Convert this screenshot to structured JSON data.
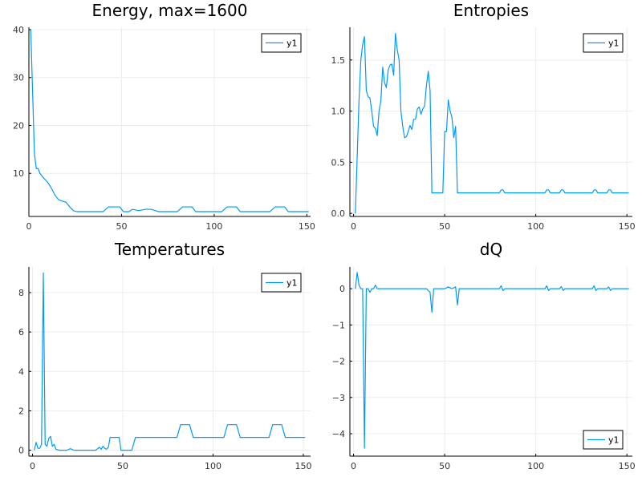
{
  "chart_data": [
    {
      "type": "line",
      "title": "Energy, max=1600",
      "xlim": [
        0,
        152
      ],
      "ylim": [
        1,
        40.5
      ],
      "x_ticks": [
        0,
        50,
        100,
        150
      ],
      "x_tick_labels": [
        "0",
        "50",
        "100",
        "150"
      ],
      "y_ticks": [
        10,
        20,
        30,
        40
      ],
      "y_tick_labels": [
        "10",
        "20",
        "30",
        "40"
      ],
      "grid": true,
      "legend": {
        "placement": "top-right",
        "entries": [
          "y1"
        ]
      },
      "series": [
        {
          "name": "y1",
          "color": "#009AF9",
          "points": [
            [
              1,
              40
            ],
            [
              3,
              14
            ],
            [
              4,
              11
            ],
            [
              5,
              11
            ],
            [
              6,
              10
            ],
            [
              8,
              9
            ],
            [
              10,
              8.2
            ],
            [
              12,
              7
            ],
            [
              14,
              5.5
            ],
            [
              16,
              4.5
            ],
            [
              18,
              4.2
            ],
            [
              20,
              4
            ],
            [
              22,
              3
            ],
            [
              24,
              2.2
            ],
            [
              26,
              2
            ],
            [
              30,
              2
            ],
            [
              36,
              2
            ],
            [
              40,
              2
            ],
            [
              43,
              3
            ],
            [
              49,
              3
            ],
            [
              51,
              2
            ],
            [
              54,
              2
            ],
            [
              56,
              2.5
            ],
            [
              59,
              2.2
            ],
            [
              63,
              2.5
            ],
            [
              66,
              2.5
            ],
            [
              70,
              2
            ],
            [
              76,
              2
            ],
            [
              80,
              2
            ],
            [
              83,
              3
            ],
            [
              88,
              3
            ],
            [
              90,
              2
            ],
            [
              96,
              2
            ],
            [
              104,
              2
            ],
            [
              107,
              3
            ],
            [
              112,
              3
            ],
            [
              114,
              2
            ],
            [
              122,
              2
            ],
            [
              130,
              2
            ],
            [
              133,
              3
            ],
            [
              138,
              3
            ],
            [
              140,
              2
            ],
            [
              147,
              2
            ],
            [
              151,
              2
            ]
          ]
        }
      ]
    },
    {
      "type": "line",
      "title": "Entropies",
      "xlim": [
        -2,
        153
      ],
      "ylim": [
        -0.03,
        1.82
      ],
      "x_ticks": [
        0,
        50,
        100,
        150
      ],
      "x_tick_labels": [
        "0",
        "50",
        "100",
        "150"
      ],
      "y_ticks": [
        0,
        0.5,
        1.0,
        1.5
      ],
      "y_tick_labels": [
        "0.0",
        "0.5",
        "1.0",
        "1.5"
      ],
      "grid": true,
      "legend": {
        "placement": "top-right",
        "entries": [
          "y1"
        ]
      },
      "series": [
        {
          "name": "y1",
          "color": "#009AF9",
          "points": [
            [
              1,
              0
            ],
            [
              3,
              1.1
            ],
            [
              4,
              1.5
            ],
            [
              5,
              1.65
            ],
            [
              6,
              1.73
            ],
            [
              7,
              1.2
            ],
            [
              8,
              1.14
            ],
            [
              9,
              1.13
            ],
            [
              10,
              1.0
            ],
            [
              11,
              0.85
            ],
            [
              12,
              0.83
            ],
            [
              13,
              0.76
            ],
            [
              14,
              1.0
            ],
            [
              15,
              1.1
            ],
            [
              16,
              1.43
            ],
            [
              17,
              1.28
            ],
            [
              18,
              1.23
            ],
            [
              19,
              1.4
            ],
            [
              20,
              1.45
            ],
            [
              21,
              1.46
            ],
            [
              22,
              1.35
            ],
            [
              23,
              1.76
            ],
            [
              24,
              1.6
            ],
            [
              25,
              1.5
            ],
            [
              26,
              1.0
            ],
            [
              27,
              0.85
            ],
            [
              28,
              0.74
            ],
            [
              29,
              0.75
            ],
            [
              30,
              0.8
            ],
            [
              31,
              0.86
            ],
            [
              32,
              0.82
            ],
            [
              33,
              0.92
            ],
            [
              34,
              0.92
            ],
            [
              35,
              1.02
            ],
            [
              36,
              1.04
            ],
            [
              37,
              0.97
            ],
            [
              38,
              1.02
            ],
            [
              39,
              1.05
            ],
            [
              40,
              1.25
            ],
            [
              41,
              1.39
            ],
            [
              42,
              1.2
            ],
            [
              43,
              0.2
            ],
            [
              49,
              0.2
            ],
            [
              50,
              0.8
            ],
            [
              51,
              0.8
            ],
            [
              52,
              1.11
            ],
            [
              53,
              1.0
            ],
            [
              54,
              0.94
            ],
            [
              55,
              0.74
            ],
            [
              56,
              0.85
            ],
            [
              57,
              0.2
            ],
            [
              60,
              0.2
            ],
            [
              80,
              0.2
            ],
            [
              81,
              0.23
            ],
            [
              82,
              0.23
            ],
            [
              83,
              0.2
            ],
            [
              105,
              0.2
            ],
            [
              106,
              0.23
            ],
            [
              107,
              0.23
            ],
            [
              108,
              0.2
            ],
            [
              113,
              0.2
            ],
            [
              114,
              0.23
            ],
            [
              115,
              0.23
            ],
            [
              116,
              0.2
            ],
            [
              131,
              0.2
            ],
            [
              132,
              0.23
            ],
            [
              133,
              0.23
            ],
            [
              134,
              0.2
            ],
            [
              139,
              0.2
            ],
            [
              140,
              0.23
            ],
            [
              141,
              0.23
            ],
            [
              142,
              0.2
            ],
            [
              151,
              0.2
            ]
          ]
        }
      ]
    },
    {
      "type": "line",
      "title": "Temperatures",
      "xlim": [
        -2,
        154
      ],
      "ylim": [
        -0.3,
        9.3
      ],
      "x_ticks": [
        0,
        50,
        100,
        150
      ],
      "x_tick_labels": [
        "0",
        "50",
        "100",
        "150"
      ],
      "y_ticks": [
        0,
        2,
        4,
        6,
        8
      ],
      "y_tick_labels": [
        "0",
        "2",
        "4",
        "6",
        "8"
      ],
      "grid": true,
      "legend": {
        "placement": "top-right",
        "entries": [
          "y1"
        ]
      },
      "series": [
        {
          "name": "y1",
          "color": "#009AF9",
          "points": [
            [
              1,
              0
            ],
            [
              2,
              0.4
            ],
            [
              3,
              0.1
            ],
            [
              4,
              0.1
            ],
            [
              5,
              0.3
            ],
            [
              6,
              9
            ],
            [
              7,
              0.3
            ],
            [
              8,
              0.2
            ],
            [
              9,
              0.6
            ],
            [
              10,
              0.7
            ],
            [
              11,
              0.2
            ],
            [
              12,
              0.3
            ],
            [
              13,
              0.05
            ],
            [
              15,
              0
            ],
            [
              19,
              0
            ],
            [
              21,
              0.08
            ],
            [
              23,
              0
            ],
            [
              30,
              0
            ],
            [
              35,
              0
            ],
            [
              37,
              0.15
            ],
            [
              38,
              0.05
            ],
            [
              39,
              0.2
            ],
            [
              40,
              0.1
            ],
            [
              41,
              0.05
            ],
            [
              42,
              0.15
            ],
            [
              43,
              0.65
            ],
            [
              48,
              0.65
            ],
            [
              49,
              0
            ],
            [
              55,
              0
            ],
            [
              57,
              0.65
            ],
            [
              80,
              0.65
            ],
            [
              82,
              1.3
            ],
            [
              87,
              1.3
            ],
            [
              89,
              0.65
            ],
            [
              106,
              0.65
            ],
            [
              108,
              1.3
            ],
            [
              113,
              1.3
            ],
            [
              115,
              0.65
            ],
            [
              131,
              0.65
            ],
            [
              133,
              1.3
            ],
            [
              138,
              1.3
            ],
            [
              140,
              0.65
            ],
            [
              151,
              0.65
            ]
          ]
        }
      ]
    },
    {
      "type": "line",
      "title": "dQ",
      "xlim": [
        -2,
        153
      ],
      "ylim": [
        -4.62,
        0.6
      ],
      "x_ticks": [
        0,
        50,
        100,
        150
      ],
      "x_tick_labels": [
        "0",
        "50",
        "100",
        "150"
      ],
      "y_ticks": [
        0,
        -1,
        -2,
        -3,
        -4
      ],
      "y_tick_labels": [
        "0",
        "−1",
        "−2",
        "−3",
        "−4"
      ],
      "grid": true,
      "legend": {
        "placement": "bottom-right",
        "entries": [
          "y1"
        ]
      },
      "series": [
        {
          "name": "y1",
          "color": "#009AF9",
          "points": [
            [
              1,
              0
            ],
            [
              2,
              0.45
            ],
            [
              3,
              0.1
            ],
            [
              4,
              0
            ],
            [
              5,
              0
            ],
            [
              6,
              -4.4
            ],
            [
              7,
              0
            ],
            [
              8,
              0
            ],
            [
              9,
              -0.1
            ],
            [
              10,
              0
            ],
            [
              11,
              0
            ],
            [
              12,
              0.1
            ],
            [
              13,
              0
            ],
            [
              20,
              0
            ],
            [
              40,
              0
            ],
            [
              42,
              -0.1
            ],
            [
              43,
              -0.65
            ],
            [
              44,
              0
            ],
            [
              50,
              0
            ],
            [
              52,
              0.05
            ],
            [
              54,
              0
            ],
            [
              56,
              0.05
            ],
            [
              57,
              -0.45
            ],
            [
              58,
              0
            ],
            [
              80,
              0
            ],
            [
              81,
              0.08
            ],
            [
              82,
              -0.05
            ],
            [
              83,
              0
            ],
            [
              105,
              0
            ],
            [
              106,
              0.08
            ],
            [
              107,
              -0.05
            ],
            [
              108,
              0
            ],
            [
              113,
              0
            ],
            [
              114,
              0.06
            ],
            [
              115,
              -0.05
            ],
            [
              116,
              0
            ],
            [
              131,
              0
            ],
            [
              132,
              0.08
            ],
            [
              133,
              -0.05
            ],
            [
              134,
              0
            ],
            [
              139,
              0
            ],
            [
              140,
              0.05
            ],
            [
              141,
              -0.05
            ],
            [
              142,
              0
            ],
            [
              151,
              0
            ]
          ]
        }
      ]
    }
  ]
}
